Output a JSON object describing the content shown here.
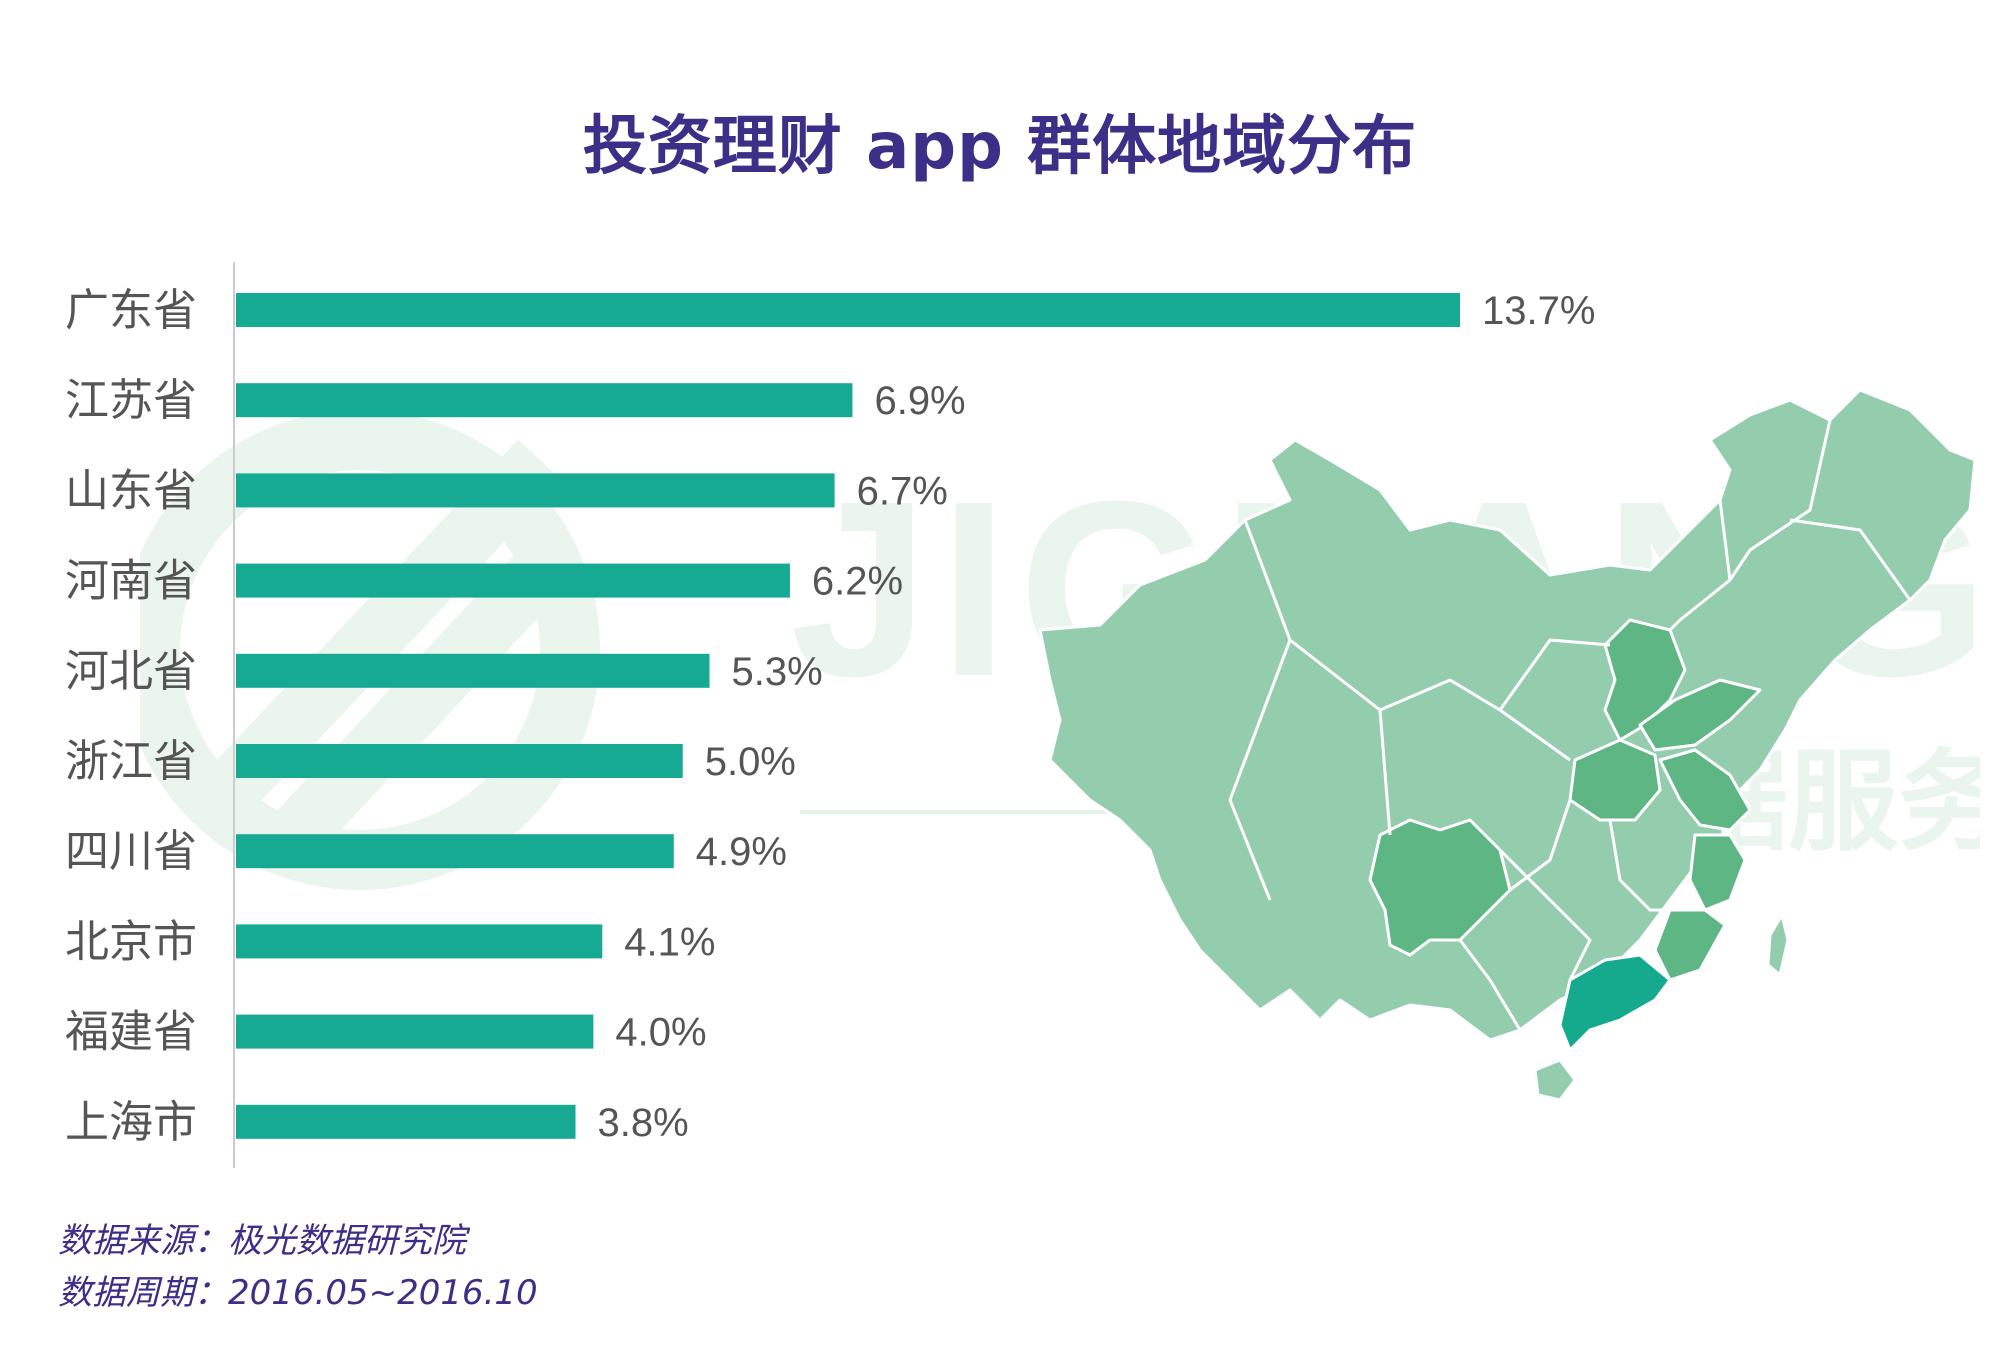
{
  "chart_data": {
    "type": "bar",
    "orientation": "horizontal",
    "title": "投资理财 app 群体地域分布",
    "categories": [
      "广东省",
      "江苏省",
      "山东省",
      "河南省",
      "河北省",
      "浙江省",
      "四川省",
      "北京市",
      "福建省",
      "上海市"
    ],
    "values": [
      13.7,
      6.9,
      6.7,
      6.2,
      5.3,
      5.0,
      4.9,
      4.1,
      4.0,
      3.8
    ],
    "value_labels": [
      "13.7%",
      "6.9%",
      "6.7%",
      "6.2%",
      "5.3%",
      "5.0%",
      "4.9%",
      "4.1%",
      "4.0%",
      "3.8%"
    ],
    "xlim": [
      0,
      14
    ],
    "grid": false,
    "legend": "none",
    "bar_color": "#17aa93"
  },
  "watermark": {
    "brand": "JIGUANG",
    "tagline": "极光 数据服务"
  },
  "footer": {
    "source": "数据来源：极光数据研究院",
    "period": "数据周期：2016.05~2016.10"
  },
  "colors": {
    "title": "#3b2f87",
    "bar": "#17aa93",
    "label": "#555555",
    "map_light": "#94cdae",
    "map_medium": "#5db683",
    "map_top": "#15a98d",
    "watermark": "#eaf5ee"
  }
}
